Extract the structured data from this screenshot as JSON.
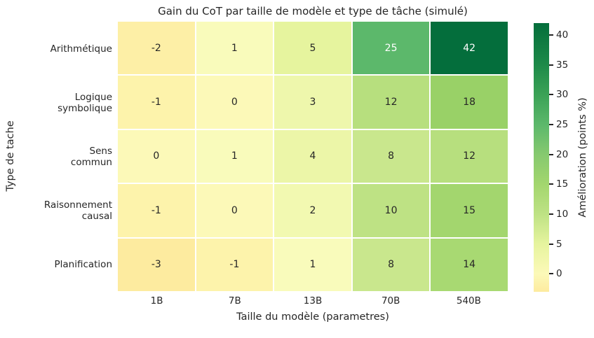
{
  "figure": {
    "background": "#ffffff",
    "text_color": "#262626"
  },
  "chart_data": {
    "type": "heatmap",
    "title": "Gain du CoT par taille de modèle et type de tâche (simulé)",
    "xlabel": "Taille du modèle (parametres)",
    "ylabel": "Type de tache",
    "x_categories": [
      "1B",
      "7B",
      "13B",
      "70B",
      "540B"
    ],
    "y_categories": [
      "Arithmétique",
      "Logique\nsymbolique",
      "Sens\ncommun",
      "Raisonnement\ncausal",
      "Planification"
    ],
    "values": [
      [
        -2,
        1,
        5,
        25,
        42
      ],
      [
        -1,
        0,
        3,
        12,
        18
      ],
      [
        0,
        1,
        4,
        8,
        12
      ],
      [
        -1,
        0,
        2,
        10,
        15
      ],
      [
        -3,
        -1,
        1,
        8,
        14
      ]
    ],
    "cell_colors": [
      [
        "#fdefa6",
        "#f9fbbb",
        "#e6f49e",
        "#5cb86b",
        "#046e3c"
      ],
      [
        "#fdf3ab",
        "#fcf9b8",
        "#eef7ac",
        "#b7df7e",
        "#99d167"
      ],
      [
        "#fcf9b8",
        "#f9fbbb",
        "#ecf6a8",
        "#c9e78d",
        "#b7df7e"
      ],
      [
        "#fdf3ab",
        "#fcf9b8",
        "#f2f9b1",
        "#bee284",
        "#a3d66e"
      ],
      [
        "#fdeb9f",
        "#fdf3ab",
        "#f9fbbb",
        "#c9e78d",
        "#a8d972"
      ]
    ],
    "grid": "white gridlines between cells",
    "legend_position": "colorbar-right",
    "colorbar": {
      "label": "Amélioration (points %)",
      "ticks": [
        40,
        35,
        30,
        25,
        20,
        15,
        10,
        5,
        0
      ],
      "vmin": -3,
      "vmax": 42,
      "gradient_stops": [
        {
          "value": 42,
          "color": "#046e3c"
        },
        {
          "value": 40,
          "color": "#0b763f"
        },
        {
          "value": 35,
          "color": "#1d8a49"
        },
        {
          "value": 30,
          "color": "#3ba256"
        },
        {
          "value": 25,
          "color": "#5cb86b"
        },
        {
          "value": 20,
          "color": "#86c96f"
        },
        {
          "value": 15,
          "color": "#a3d66e"
        },
        {
          "value": 10,
          "color": "#bee284"
        },
        {
          "value": 5,
          "color": "#e6f49e"
        },
        {
          "value": 0,
          "color": "#fcf9b8"
        },
        {
          "value": -3,
          "color": "#fdeb9f"
        }
      ]
    }
  }
}
